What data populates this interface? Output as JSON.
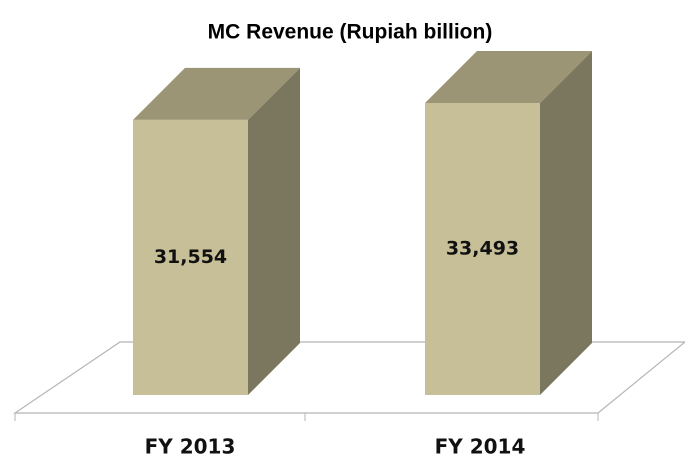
{
  "chart_data": {
    "type": "bar3d",
    "title": "MC Revenue (Rupiah billion)",
    "categories": [
      "FY 2013",
      "FY 2014"
    ],
    "values": [
      31554,
      33493
    ],
    "value_labels": [
      "31,554",
      "33,493"
    ],
    "color": "#c7bf97"
  }
}
